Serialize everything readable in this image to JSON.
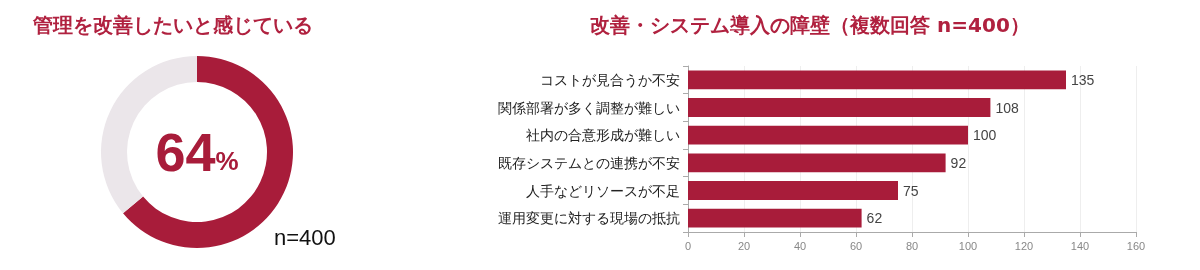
{
  "chart_data": [
    {
      "type": "donut",
      "title": "管理を改善したいと感じている",
      "categories": [
        null,
        null
      ],
      "values": [
        64,
        36
      ],
      "colors": [
        "#a81c3a",
        "#ebe6ea"
      ],
      "annotations": [
        "64%",
        "n=400"
      ]
    },
    {
      "type": "bar",
      "orientation": "horizontal",
      "title": "改善・システム導入の障壁（複数回答 n=400）",
      "categories": [
        "コストが見合うか不安",
        "関係部署が多く調整が難しい",
        "社内の合意形成が難しい",
        "既存システムとの連携が不安",
        "人手などリソースが不足",
        "運用変更に対する現場の抵抗"
      ],
      "values": [
        135,
        108,
        100,
        92,
        75,
        62
      ],
      "color": "#a81c3a",
      "xlim": [
        0,
        160
      ],
      "xticks": [
        0,
        20,
        40,
        60,
        80,
        100,
        120,
        140,
        160
      ],
      "grid": "x",
      "data_labels": true
    }
  ]
}
